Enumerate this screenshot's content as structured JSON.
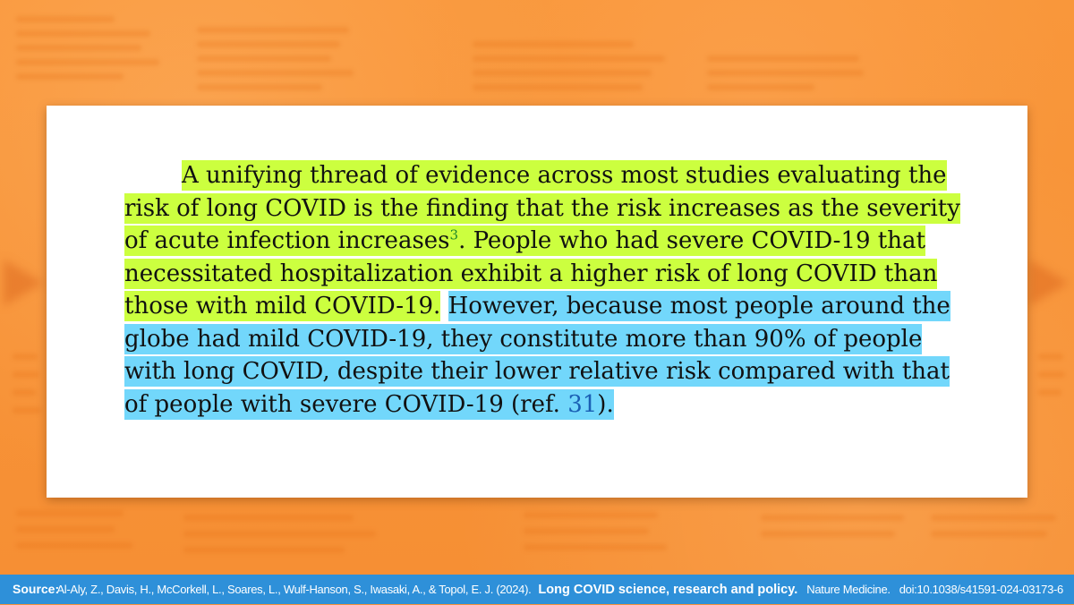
{
  "excerpt": {
    "green_part_1": "A unifying thread of evidence across most studies evaluating the risk of long COVID is the finding that the risk increases as the severity of acute infection increases",
    "green_ref": "3",
    "green_part_2": ". People who had severe COVID-19 that necessitated hospitalization exhibit a higher risk of long COVID than those with mild COVID-19.",
    "blue_part_1": "However, because most people around the globe had mild COVID-19, they constitute more than 90% of people with long COVID, despite their lower relative risk compared with that of people with severe COVID-19 (ref.",
    "blue_ref": "31",
    "blue_part_2": ")."
  },
  "footer": {
    "label": "Source:",
    "authors": "Al-Aly, Z., Davis, H., McCorkell, L., Soares, L., Wulf-Hanson, S., Iwasaki, A., & Topol, E. J. (2024).",
    "title": "Long COVID science, research and policy.",
    "journal": "Nature Medicine.",
    "doi": "doi:10.1038/s41591-024-03173-6"
  },
  "colors": {
    "background": "#f7933a",
    "highlight_green": "#ccff3f",
    "highlight_blue": "#72d7fb",
    "footer_bar": "#2e90d9",
    "ref_green": "#1f8a2a",
    "ref_blue": "#1a5fb4"
  }
}
